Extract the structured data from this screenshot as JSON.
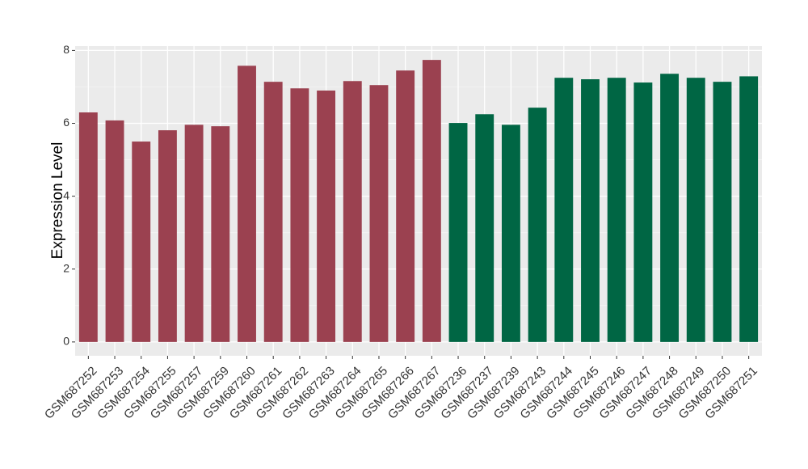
{
  "chart_data": {
    "type": "bar",
    "y_label": "Expression Level",
    "categories": [
      "GSM687252",
      "GSM687253",
      "GSM687254",
      "GSM687255",
      "GSM687257",
      "GSM687259",
      "GSM687260",
      "GSM687261",
      "GSM687262",
      "GSM687263",
      "GSM687264",
      "GSM687265",
      "GSM687266",
      "GSM687267",
      "GSM687236",
      "GSM687237",
      "GSM687239",
      "GSM687243",
      "GSM687244",
      "GSM687245",
      "GSM687246",
      "GSM687247",
      "GSM687248",
      "GSM687249",
      "GSM687250",
      "GSM687251"
    ],
    "values": [
      6.3,
      6.08,
      5.5,
      5.81,
      5.96,
      5.92,
      7.58,
      7.14,
      6.96,
      6.9,
      7.16,
      7.05,
      7.45,
      7.74,
      6.01,
      6.25,
      5.96,
      6.43,
      7.25,
      7.21,
      7.25,
      7.12,
      7.36,
      7.25,
      7.14,
      7.29
    ],
    "colors": [
      "#9b4150",
      "#9b4150",
      "#9b4150",
      "#9b4150",
      "#9b4150",
      "#9b4150",
      "#9b4150",
      "#9b4150",
      "#9b4150",
      "#9b4150",
      "#9b4150",
      "#9b4150",
      "#9b4150",
      "#9b4150",
      "#006644",
      "#006644",
      "#006644",
      "#006644",
      "#006644",
      "#006644",
      "#006644",
      "#006644",
      "#006644",
      "#006644",
      "#006644",
      "#006644"
    ],
    "ylim": [
      -0.38,
      8.12
    ],
    "yticks": [
      0,
      2,
      4,
      6,
      8
    ],
    "minor_yticks": [
      1,
      3,
      5,
      7
    ],
    "grid": true
  }
}
